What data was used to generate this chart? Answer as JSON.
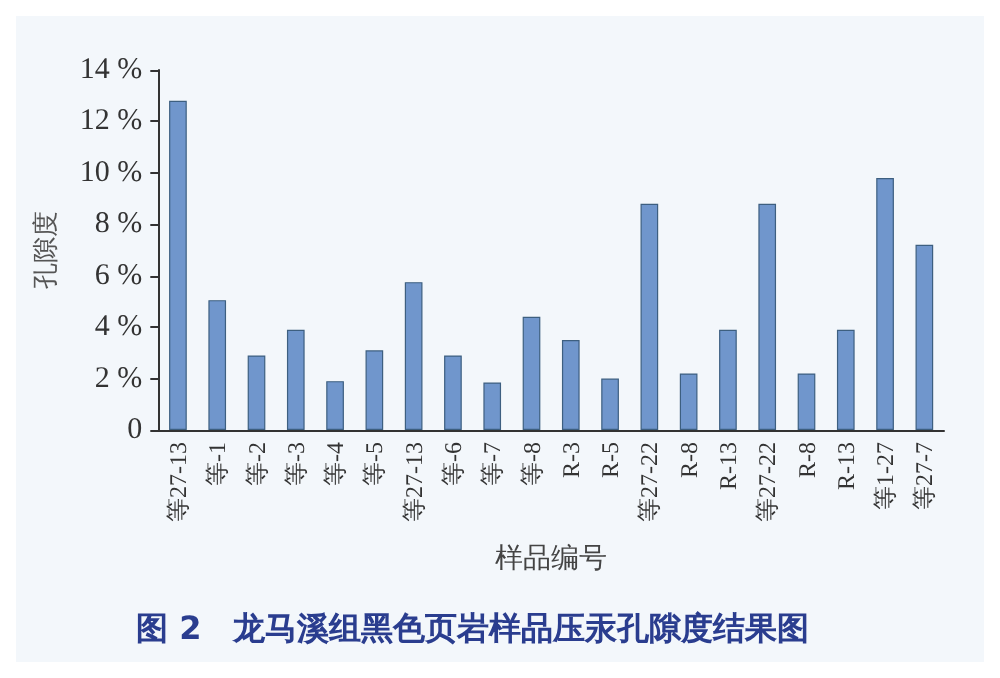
{
  "chart_data": {
    "type": "bar",
    "xlabel": "样品编号",
    "ylabel": "孔隙度",
    "annotations": [
      "图 2　龙马溪组黑色页岩样品压汞孔隙度结果图"
    ],
    "categories": [
      "等27-13",
      "等-1",
      "等-2",
      "等-3",
      "等-4",
      "等-5",
      "等27-13",
      "等-6",
      "等-7",
      "等-8",
      "R-3",
      "R-5",
      "等27-22",
      "R-8",
      "R-13",
      "等27-22",
      "R-8",
      "R-13",
      "等1-27",
      "等27-7"
    ],
    "values": [
      12.8,
      5.05,
      2.9,
      3.9,
      1.9,
      3.1,
      5.75,
      2.9,
      1.85,
      4.4,
      3.5,
      2.0,
      8.8,
      2.2,
      3.9,
      8.8,
      2.2,
      3.9,
      9.8,
      7.2
    ],
    "color": "#7096cc",
    "ylim": [
      0,
      14
    ],
    "yticks": [
      0,
      {
        "value": 2,
        "label": "2 %"
      },
      {
        "value": 4,
        "label": "4 %"
      },
      {
        "value": 6,
        "label": "6 %"
      },
      {
        "value": 8,
        "label": "8 %"
      },
      {
        "value": 10,
        "label": "10 %"
      },
      {
        "value": 12,
        "label": "12 %"
      },
      {
        "value": 14,
        "label": "14 %"
      }
    ],
    "grid": false
  }
}
